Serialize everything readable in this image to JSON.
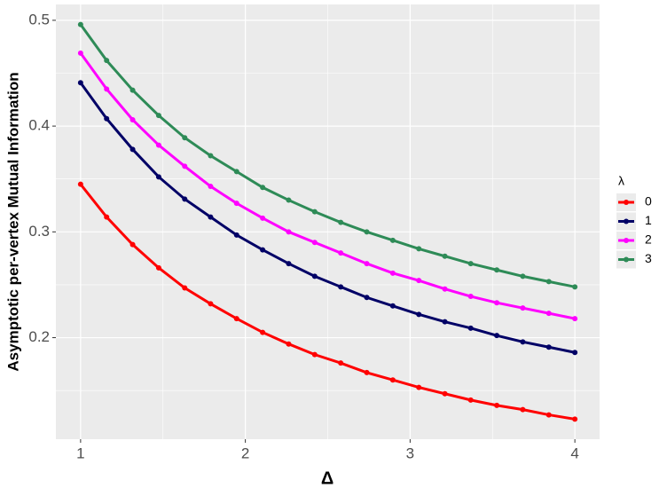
{
  "chart_data": {
    "type": "line",
    "x_label": "Δ",
    "y_label": "Asymptotic per-vertex Mutual Information",
    "legend_title": "λ",
    "legend_position": "right",
    "grid": true,
    "x": [
      1,
      1.158,
      1.316,
      1.474,
      1.632,
      1.789,
      1.947,
      2.105,
      2.263,
      2.421,
      2.579,
      2.737,
      2.895,
      3.053,
      3.211,
      3.368,
      3.526,
      3.684,
      3.842,
      4
    ],
    "series": [
      {
        "name": "0",
        "color": "#ff0000",
        "values": [
          0.345,
          0.314,
          0.288,
          0.266,
          0.247,
          0.232,
          0.218,
          0.205,
          0.194,
          0.184,
          0.176,
          0.167,
          0.16,
          0.153,
          0.147,
          0.141,
          0.136,
          0.132,
          0.127,
          0.123
        ]
      },
      {
        "name": "1",
        "color": "#000066",
        "values": [
          0.441,
          0.407,
          0.378,
          0.352,
          0.331,
          0.314,
          0.297,
          0.283,
          0.27,
          0.258,
          0.248,
          0.238,
          0.23,
          0.222,
          0.215,
          0.209,
          0.202,
          0.196,
          0.191,
          0.186
        ]
      },
      {
        "name": "2",
        "color": "#ff00ff",
        "values": [
          0.469,
          0.435,
          0.406,
          0.382,
          0.362,
          0.343,
          0.327,
          0.313,
          0.3,
          0.29,
          0.28,
          0.27,
          0.261,
          0.254,
          0.246,
          0.239,
          0.233,
          0.228,
          0.223,
          0.218
        ]
      },
      {
        "name": "3",
        "color": "#2e8b57",
        "values": [
          0.496,
          0.462,
          0.434,
          0.41,
          0.389,
          0.372,
          0.357,
          0.342,
          0.33,
          0.319,
          0.309,
          0.3,
          0.292,
          0.284,
          0.277,
          0.27,
          0.264,
          0.258,
          0.253,
          0.248
        ]
      }
    ],
    "xlim": [
      0.85,
      4.15
    ],
    "xticks": [
      1,
      2,
      3,
      4
    ],
    "ylim": [
      0.104,
      0.515
    ],
    "yticks": [
      0.2,
      0.3,
      0.4,
      0.5
    ]
  }
}
